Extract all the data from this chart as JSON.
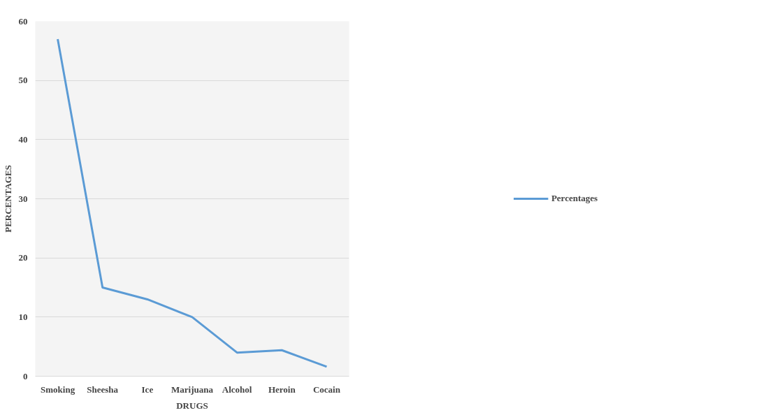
{
  "chart_data": {
    "type": "line",
    "xlabel": "DRUGS",
    "ylabel": "PERCENTAGES",
    "categories": [
      "Smoking",
      "Sheesha",
      "Ice",
      "Marijuana",
      "Alcohol",
      "Heroin",
      "Cocain"
    ],
    "series": [
      {
        "name": "Percentages",
        "color": "#5b9bd5",
        "values": [
          57,
          15,
          13,
          10,
          4,
          4.4,
          1.6
        ]
      }
    ],
    "ylim": [
      0,
      60
    ],
    "yticks": [
      0,
      10,
      20,
      30,
      40,
      50,
      60
    ],
    "grid": "y",
    "legend": "right",
    "marker": "none",
    "line_style": "solid"
  }
}
